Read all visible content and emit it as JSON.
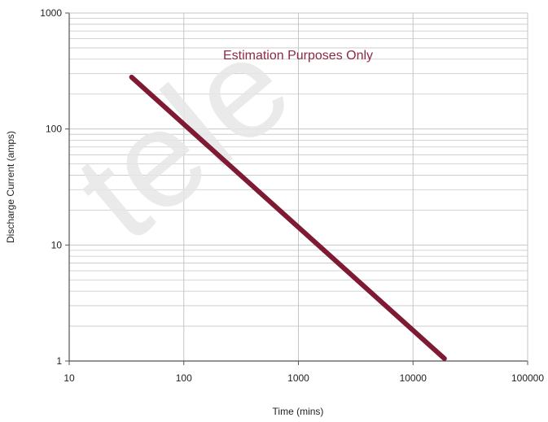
{
  "chart_data": {
    "type": "line",
    "title": "",
    "xlabel": "Time (mins)",
    "ylabel": "Discharge Current (amps)",
    "xscale": "log",
    "yscale": "log",
    "xlim": [
      10,
      100000
    ],
    "ylim": [
      1,
      1000
    ],
    "x_ticks": [
      10,
      100,
      1000,
      10000,
      100000
    ],
    "x_tick_labels": [
      "10",
      "100",
      "1000",
      "10000",
      "100000"
    ],
    "y_ticks": [
      1,
      10,
      100,
      1000
    ],
    "y_tick_labels": [
      "1",
      "10",
      "100",
      "1000"
    ],
    "grid": true,
    "legend": "none",
    "annotation": "Estimation Purposes Only",
    "watermark": "tele",
    "series": [
      {
        "color": "#7f1a35",
        "x": [
          35,
          18800
        ],
        "y": [
          280,
          1.05
        ]
      }
    ]
  },
  "colors": {
    "line": "#7f1a35",
    "annotation": "#8c2a45",
    "grid": "#c6c6c6",
    "axis": "#555555",
    "watermark": "#e6e6e6"
  }
}
